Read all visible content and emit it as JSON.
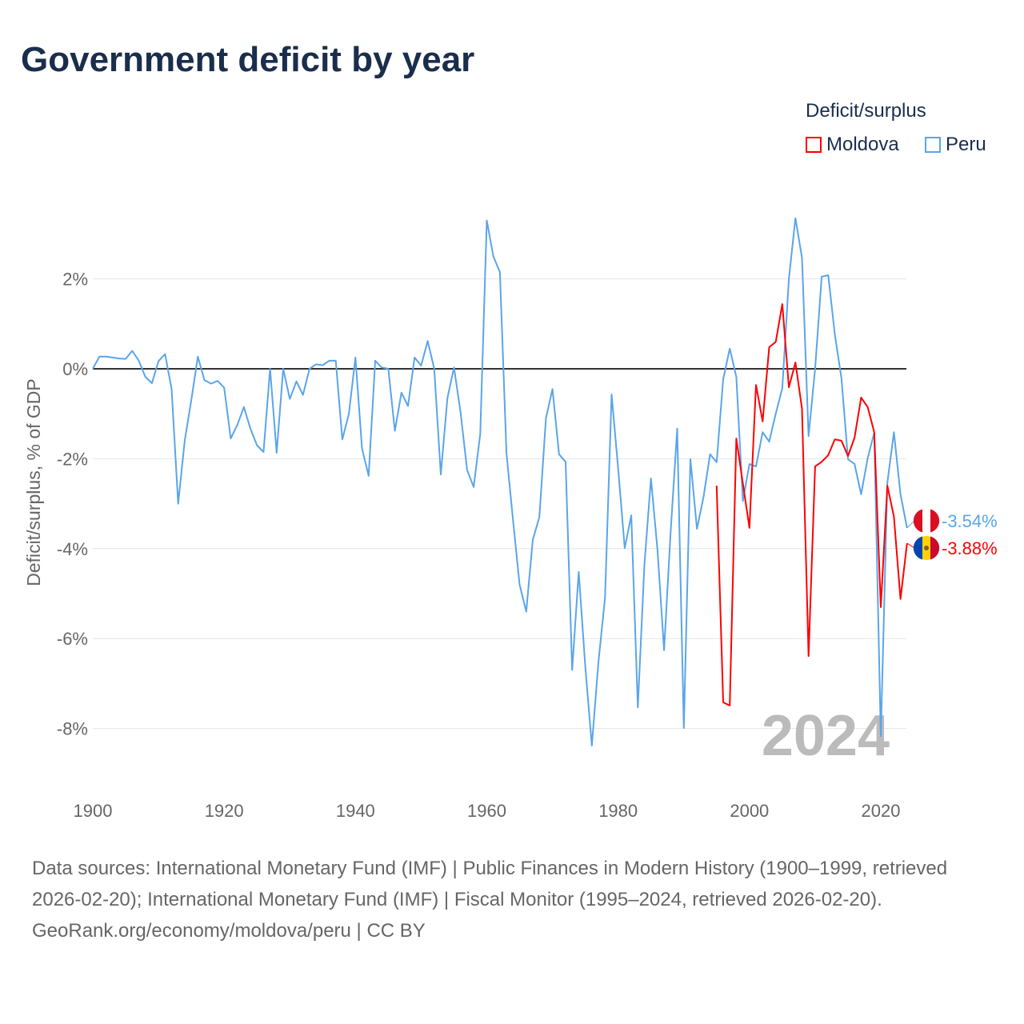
{
  "title": "Government deficit by year",
  "legend": {
    "title": "Deficit/surplus",
    "items": [
      {
        "name": "Moldova",
        "color": "#ff0000"
      },
      {
        "name": "Peru",
        "color": "#5aa5ea"
      }
    ]
  },
  "watermark_year": "2024",
  "footer": {
    "sources": "Data sources: International Monetary Fund (IMF) | Public Finances in Modern History (1900–1999, retrieved 2026-02-20); International Monetary Fund (IMF) | Fiscal Monitor (1995–2024, retrieved 2026-02-20).",
    "link": "GeoRank.org/economy/moldova/peru | CC BY"
  },
  "chart_data": {
    "type": "line",
    "title": "Government deficit by year",
    "xlabel": "",
    "ylabel": "Deficit/surplus, % of GDP",
    "xlim": [
      1900,
      2024
    ],
    "ylim": [
      -9.3,
      3.5
    ],
    "xticks": [
      1900,
      1920,
      1940,
      1960,
      1980,
      2000,
      2020
    ],
    "yticks": [
      {
        "v": 2,
        "label": "2%"
      },
      {
        "v": 0,
        "label": "0%"
      },
      {
        "v": -2,
        "label": "-2%"
      },
      {
        "v": -4,
        "label": "-4%"
      },
      {
        "v": -6,
        "label": "-6%"
      },
      {
        "v": -8,
        "label": "-8%"
      }
    ],
    "series": [
      {
        "name": "Peru",
        "color": "#5aa5ea",
        "start": 1900,
        "end_label": "-3.54%",
        "values": [
          0,
          0.27,
          0.27,
          0.25,
          0.23,
          0.22,
          0.4,
          0.18,
          -0.18,
          -0.32,
          0.17,
          0.33,
          -0.45,
          -3.0,
          -1.6,
          -0.7,
          0.27,
          -0.25,
          -0.33,
          -0.27,
          -0.42,
          -1.55,
          -1.25,
          -0.85,
          -1.33,
          -1.7,
          -1.85,
          0,
          -1.87,
          0,
          -0.67,
          -0.28,
          -0.58,
          0,
          0.1,
          0.08,
          0.18,
          0.18,
          -1.57,
          -1.0,
          0.25,
          -1.77,
          -2.38,
          0.18,
          0.03,
          0,
          -1.38,
          -0.53,
          -0.83,
          0.25,
          0.07,
          0.62,
          0,
          -2.35,
          -0.65,
          0.03,
          -0.97,
          -2.25,
          -2.63,
          -1.45,
          3.3,
          2.5,
          2.15,
          -1.88,
          -3.37,
          -4.8,
          -5.4,
          -3.8,
          -3.3,
          -1.1,
          -0.45,
          -1.9,
          -2.07,
          -6.7,
          -4.52,
          -6.62,
          -8.38,
          -6.53,
          -5.09,
          -0.57,
          -2.22,
          -3.99,
          -3.26,
          -7.53,
          -4.36,
          -2.44,
          -4.04,
          -6.26,
          -3.63,
          -1.33,
          -7.99,
          -2.01,
          -3.56,
          -2.85,
          -1.9,
          -2.08,
          -0.23,
          0.45,
          -0.18,
          -2.94,
          -2.12,
          -2.17,
          -1.41,
          -1.62,
          -1.0,
          -0.43,
          2.0,
          3.35,
          2.47,
          -1.5,
          0,
          2.05,
          2.08,
          0.77,
          -0.21,
          -2.01,
          -2.12,
          -2.79,
          -1.99,
          -1.42,
          -8.17,
          -2.53,
          -1.41,
          -2.79,
          -3.54
        ]
      },
      {
        "name": "Moldova",
        "color": "#ff0000",
        "start": 1995,
        "end_label": "-3.88%",
        "values": [
          -2.6,
          -7.42,
          -7.49,
          -1.55,
          -2.55,
          -3.54,
          -0.36,
          -1.17,
          0.48,
          0.6,
          1.44,
          -0.41,
          0.14,
          -0.89,
          -6.39,
          -2.17,
          -2.07,
          -1.92,
          -1.57,
          -1.6,
          -1.94,
          -1.53,
          -0.64,
          -0.85,
          -1.41,
          -5.3,
          -2.6,
          -3.29,
          -5.12,
          -3.88
        ]
      }
    ]
  }
}
